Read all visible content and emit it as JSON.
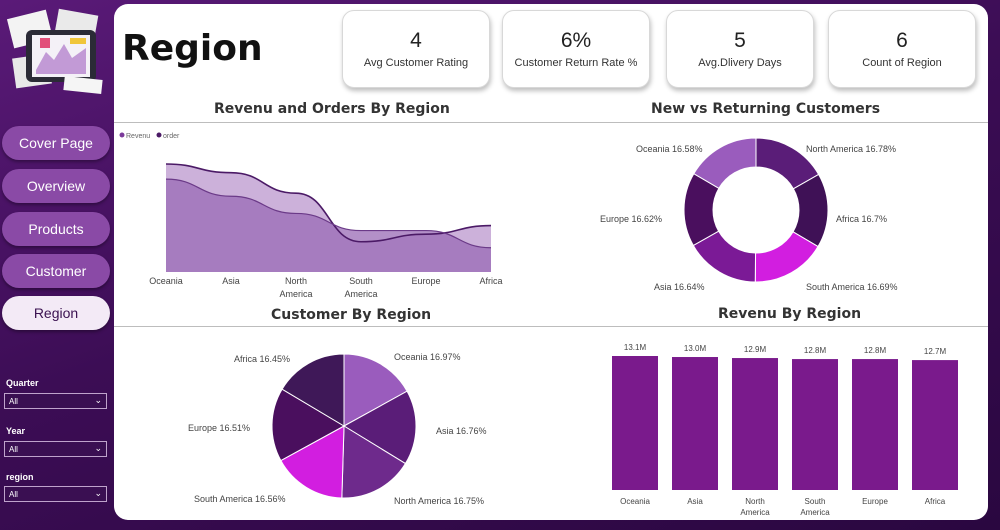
{
  "nav": {
    "items": [
      {
        "label": "Cover Page",
        "active": false
      },
      {
        "label": "Overview",
        "active": false
      },
      {
        "label": "Products",
        "active": false
      },
      {
        "label": "Customer",
        "active": false
      },
      {
        "label": "Region",
        "active": true
      }
    ]
  },
  "filters": [
    {
      "label": "Quarter",
      "value": "All"
    },
    {
      "label": "Year",
      "value": "All"
    },
    {
      "label": "region",
      "value": "All"
    }
  ],
  "page": {
    "title": "Region"
  },
  "kpis": [
    {
      "value": "4",
      "label": "Avg Customer Rating"
    },
    {
      "value": "6%",
      "label": "Customer Return Rate %"
    },
    {
      "value": "5",
      "label": "Avg.Dlivery Days"
    },
    {
      "value": "6",
      "label": "Count of Region"
    }
  ],
  "colors": {
    "accent_dark": "#4b1a66",
    "accent_mid": "#7b3a9a",
    "accent_light": "#b58ac9",
    "magenta": "#d21ee0"
  },
  "chart_data": [
    {
      "type": "area",
      "title": "Revenu and Orders By Region",
      "legend": [
        "Revenu",
        "order"
      ],
      "legend_position": "top-left",
      "categories": [
        "Oceania",
        "Asia",
        "North America",
        "South America",
        "Europe",
        "Africa"
      ],
      "series": [
        {
          "name": "Revenu",
          "values": [
            13.1,
            13.0,
            12.9,
            12.8,
            12.8,
            12.7
          ]
        },
        {
          "name": "order",
          "values": [
            100,
            92,
            73,
            28,
            35,
            43
          ]
        }
      ]
    },
    {
      "type": "pie",
      "subtype": "donut",
      "title": "New vs Returning Customers",
      "slices": [
        {
          "label": "North America",
          "pct": "16.78%",
          "value": 16.78,
          "color": "#5a1d78"
        },
        {
          "label": "Africa",
          "pct": "16.7%",
          "value": 16.7,
          "color": "#3f1156"
        },
        {
          "label": "South America",
          "pct": "16.69%",
          "value": 16.69,
          "color": "#d21ee0"
        },
        {
          "label": "Asia",
          "pct": "16.64%",
          "value": 16.64,
          "color": "#7b1a96"
        },
        {
          "label": "Europe",
          "pct": "16.62%",
          "value": 16.62,
          "color": "#4a0f5e"
        },
        {
          "label": "Oceania",
          "pct": "16.58%",
          "value": 16.58,
          "color": "#9a5cbd"
        }
      ]
    },
    {
      "type": "pie",
      "title": "Customer By Region",
      "slices": [
        {
          "label": "Oceania",
          "pct": "16.97%",
          "value": 16.97,
          "color": "#9a5cbd"
        },
        {
          "label": "Asia",
          "pct": "16.76%",
          "value": 16.76,
          "color": "#5a1d78"
        },
        {
          "label": "North America",
          "pct": "16.75%",
          "value": 16.75,
          "color": "#6e2a8c"
        },
        {
          "label": "South America",
          "pct": "16.56%",
          "value": 16.56,
          "color": "#d21ee0"
        },
        {
          "label": "Europe",
          "pct": "16.51%",
          "value": 16.51,
          "color": "#4a0f5e"
        },
        {
          "label": "Africa",
          "pct": "16.45%",
          "value": 16.45,
          "color": "#3f1858"
        }
      ]
    },
    {
      "type": "bar",
      "title": "Revenu By Region",
      "categories": [
        "Oceania",
        "Asia",
        "North America",
        "South America",
        "Europe",
        "Africa"
      ],
      "values": [
        13.1,
        13.0,
        12.9,
        12.8,
        12.8,
        12.7
      ],
      "data_labels": [
        "13.1M",
        "13.0M",
        "12.9M",
        "12.8M",
        "12.8M",
        "12.7M"
      ],
      "color": "#7a1a8c"
    }
  ]
}
